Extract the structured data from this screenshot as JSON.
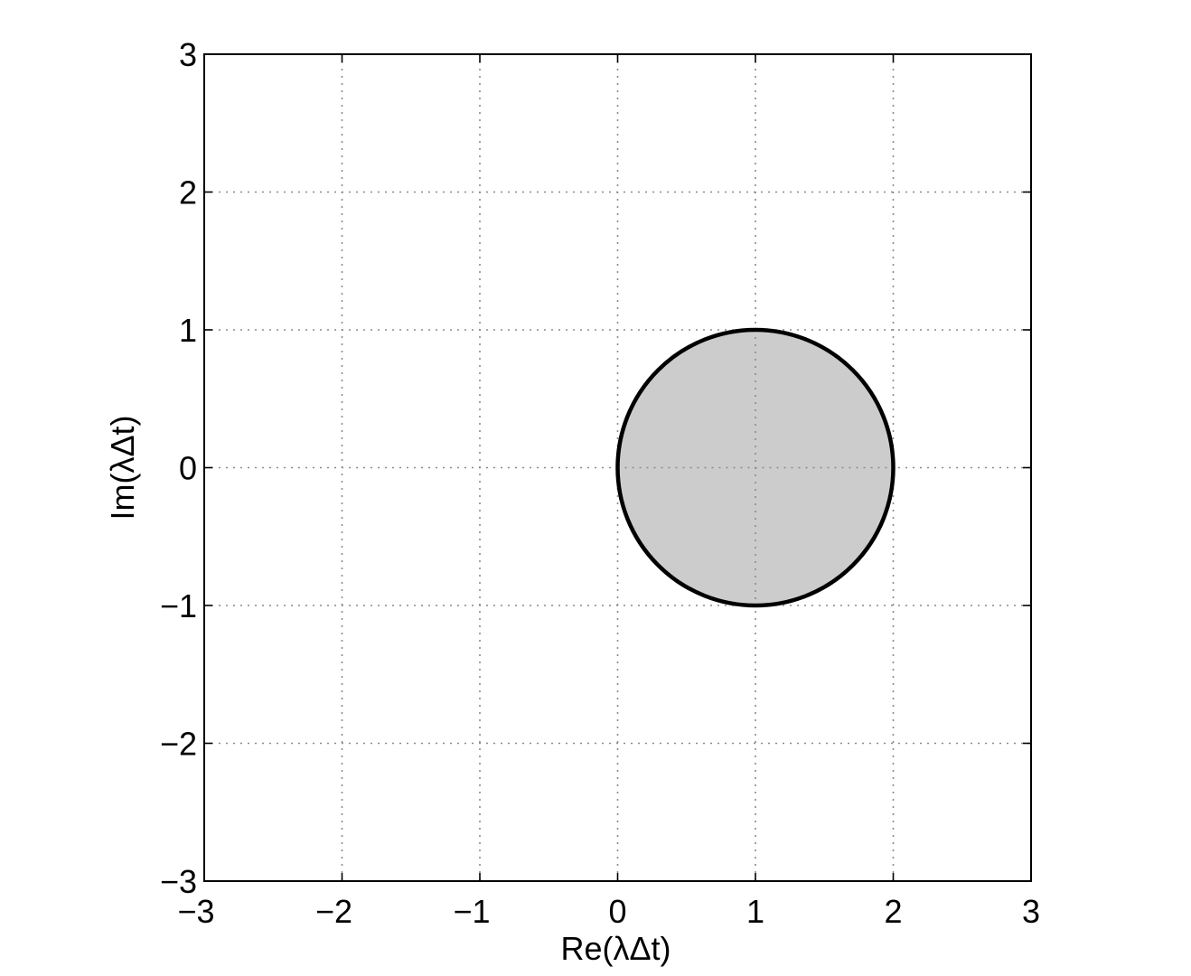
{
  "chart_data": {
    "type": "area",
    "title": "",
    "xlabel": "Re(λΔt)",
    "ylabel": "Im(λΔt)",
    "xlim": [
      -3,
      3
    ],
    "ylim": [
      -3,
      3
    ],
    "xticks": [
      -3,
      -2,
      -1,
      0,
      1,
      2,
      3
    ],
    "yticks": [
      -3,
      -2,
      -1,
      0,
      1,
      2,
      3
    ],
    "xtick_labels": [
      "−3",
      "−2",
      "−1",
      "0",
      "1",
      "2",
      "3"
    ],
    "ytick_labels": [
      "−3",
      "−2",
      "−1",
      "0",
      "1",
      "2",
      "3"
    ],
    "grid": true,
    "regions": [
      {
        "shape": "circle",
        "center": [
          1,
          0
        ],
        "radius": 1,
        "fill_color": "#cccccc",
        "edge_color": "#000000"
      }
    ]
  }
}
